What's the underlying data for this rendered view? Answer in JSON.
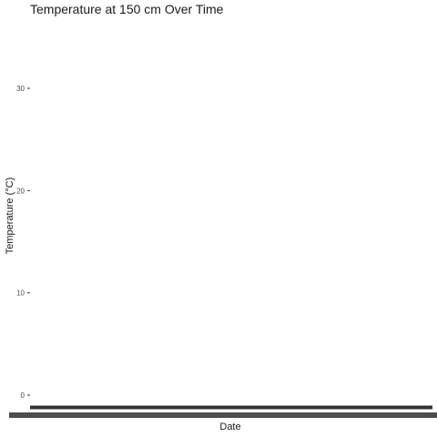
{
  "chart_data": {
    "type": "line",
    "title": "Temperature at 150 cm Over Time",
    "xlabel": "Date",
    "ylabel": "Temperature (°C)",
    "ylim": [
      -1.6,
      36.5
    ],
    "yticks": [
      0,
      10,
      20,
      30
    ],
    "grid": false,
    "legend": "none",
    "series": [
      {
        "color": "#333333",
        "x": [
          0,
          1
        ],
        "values": [
          -1.2,
          -1.2
        ]
      }
    ],
    "x_tick_labels_overplotted": true
  }
}
